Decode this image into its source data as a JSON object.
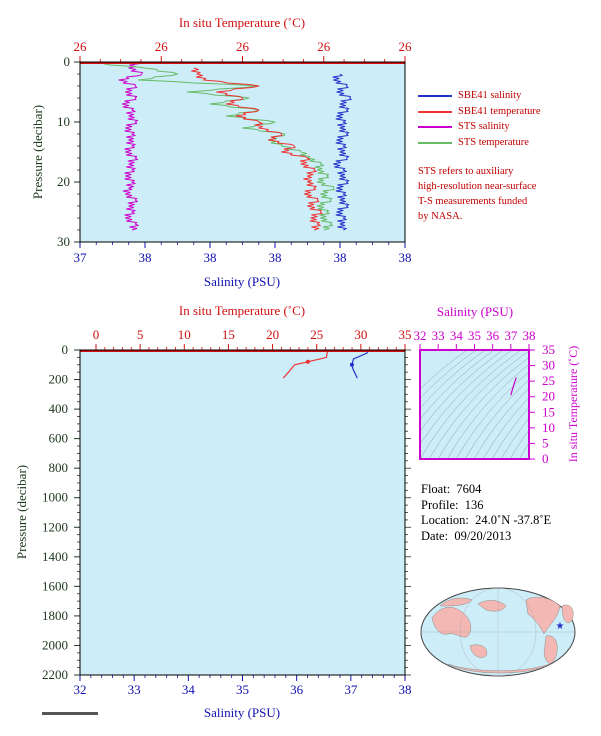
{
  "colors": {
    "plot_bg": "#cdeef8",
    "temp_axis": "#d01010",
    "sal_axis": "#1010b0",
    "pressure_axis": "#203a20",
    "stssal": "#cc00cc",
    "ststemp": "#66bb66",
    "sbesal": "#2233cc",
    "sbetemp": "#ee3333",
    "inset_axis": "#cc00cc"
  },
  "chart_data": [
    {
      "type": "line",
      "panel": "near-surface",
      "top_axis_label": "In situ Temperature (˚C)",
      "top_ticks": [
        "26",
        "26",
        "26",
        "26",
        "26"
      ],
      "bottom_axis_label": "Salinity (PSU)",
      "bottom_ticks": [
        "37",
        "38",
        "38",
        "38",
        "38",
        "38"
      ],
      "ylabel": "Pressure (decibar)",
      "yticks": [
        "0",
        "10",
        "20",
        "30"
      ],
      "ylim": [
        0,
        30
      ],
      "legend_placement": "right",
      "legend": [
        {
          "label": "SBE41 salinity",
          "color": "#2233cc"
        },
        {
          "label": "SBE41 temperature",
          "color": "#ee3333"
        },
        {
          "label": "STS salinity",
          "color": "#cc00cc"
        },
        {
          "label": "STS temperature",
          "color": "#66bb66"
        }
      ],
      "note": [
        "STS refers to auxiliary",
        "high-resolution near-surface",
        "T-S measurements funded",
        "by NASA."
      ],
      "series": [
        {
          "name": "STS salinity",
          "pressure": [
            0,
            1,
            2,
            3,
            4,
            5,
            6,
            7,
            8,
            9,
            10,
            11,
            12,
            13,
            14,
            15,
            16,
            17,
            18,
            19,
            20,
            21,
            22,
            23,
            24,
            25,
            26,
            27,
            28
          ],
          "value_frac": [
            0.18,
            0.15,
            0.19,
            0.12,
            0.17,
            0.14,
            0.17,
            0.13,
            0.16,
            0.15,
            0.17,
            0.14,
            0.16,
            0.15,
            0.16,
            0.14,
            0.17,
            0.15,
            0.16,
            0.14,
            0.16,
            0.15,
            0.14,
            0.17,
            0.15,
            0.16,
            0.14,
            0.17,
            0.16
          ]
        },
        {
          "name": "STS temperature",
          "pressure": [
            0,
            1,
            2,
            3,
            4,
            5,
            6,
            7,
            8,
            9,
            10,
            11,
            12,
            13,
            14,
            15,
            16,
            17,
            18,
            19,
            20,
            21,
            22,
            23,
            24,
            25,
            26,
            27,
            28
          ],
          "value_frac": [
            0.01,
            0.2,
            0.3,
            0.18,
            0.55,
            0.33,
            0.52,
            0.4,
            0.55,
            0.45,
            0.6,
            0.5,
            0.63,
            0.58,
            0.62,
            0.68,
            0.7,
            0.74,
            0.73,
            0.76,
            0.73,
            0.78,
            0.74,
            0.77,
            0.73,
            0.76,
            0.74,
            0.77,
            0.75
          ]
        },
        {
          "name": "SBE41 temperature",
          "pressure": [
            1,
            2,
            3,
            4,
            5,
            6,
            7,
            8,
            9,
            10,
            11,
            12,
            13,
            14,
            15,
            16,
            17,
            18,
            19,
            20,
            21,
            22,
            23,
            24,
            25,
            26,
            27,
            28
          ],
          "value_frac": [
            0.35,
            0.36,
            0.38,
            0.55,
            0.42,
            0.5,
            0.45,
            0.55,
            0.48,
            0.55,
            0.55,
            0.62,
            0.58,
            0.66,
            0.62,
            0.7,
            0.68,
            0.72,
            0.7,
            0.7,
            0.72,
            0.69,
            0.73,
            0.7,
            0.74,
            0.71,
            0.73,
            0.72
          ]
        },
        {
          "name": "SBE41 salinity",
          "pressure": [
            2,
            3,
            4,
            5,
            6,
            7,
            8,
            9,
            10,
            11,
            12,
            13,
            14,
            15,
            16,
            17,
            18,
            19,
            20,
            21,
            22,
            23,
            24,
            25,
            26,
            27,
            28
          ],
          "value_frac": [
            0.8,
            0.78,
            0.82,
            0.79,
            0.83,
            0.8,
            0.82,
            0.79,
            0.81,
            0.8,
            0.82,
            0.79,
            0.81,
            0.8,
            0.82,
            0.78,
            0.81,
            0.8,
            0.82,
            0.79,
            0.81,
            0.8,
            0.82,
            0.79,
            0.81,
            0.8,
            0.81
          ]
        }
      ]
    },
    {
      "type": "line",
      "panel": "full-profile",
      "top_axis_label": "In situ Temperature (˚C)",
      "top_ticks": [
        "0",
        "5",
        "10",
        "15",
        "20",
        "25",
        "30",
        "35"
      ],
      "xlim_temperature": [
        0,
        35
      ],
      "bottom_axis_label": "Salinity (PSU)",
      "bottom_ticks": [
        "32",
        "33",
        "34",
        "35",
        "36",
        "37",
        "38"
      ],
      "xlim_salinity": [
        32,
        38
      ],
      "ylabel": "Pressure (decibar)",
      "yticks": [
        "0",
        "200",
        "400",
        "600",
        "800",
        "1000",
        "1200",
        "1400",
        "1600",
        "1800",
        "2000",
        "2200"
      ],
      "ylim": [
        0,
        2200
      ],
      "series": [
        {
          "name": "temperature",
          "x": [
            26.2,
            26.2,
            26.1,
            24.0,
            22.5,
            21.8,
            21.2
          ],
          "pressure": [
            0,
            15,
            50,
            80,
            100,
            150,
            190
          ]
        },
        {
          "name": "salinity",
          "x": [
            37.3,
            37.3,
            37.05,
            37.02,
            37.04,
            37.08,
            37.12
          ],
          "pressure": [
            0,
            20,
            60,
            100,
            130,
            160,
            190
          ]
        }
      ]
    },
    {
      "type": "line",
      "panel": "T-S diagram",
      "top_axis_label": "Salinity (PSU)",
      "top_ticks": [
        "32",
        "33",
        "34",
        "35",
        "36",
        "37",
        "38"
      ],
      "xlim": [
        32,
        38
      ],
      "right_axis_label": "In situ Temperature (˚C)",
      "right_ticks": [
        "0",
        "5",
        "10",
        "15",
        "20",
        "25",
        "30",
        "35"
      ],
      "ylim": [
        0,
        35
      ],
      "series": [
        {
          "name": "profile",
          "x": [
            37.0,
            37.1,
            37.2,
            37.3
          ],
          "y": [
            20.5,
            22.5,
            24.5,
            26.2
          ]
        }
      ]
    }
  ],
  "float_info": {
    "float_label": "Float:",
    "float_value": "7604",
    "profile_label": "Profile:",
    "profile_value": "136",
    "location_label": "Location:",
    "location_value": "24.0˚N  -37.8˚E",
    "date_label": "Date:",
    "date_value": "09/20/2013"
  },
  "map": {
    "marker": "star",
    "marker_color": "#2233cc"
  }
}
